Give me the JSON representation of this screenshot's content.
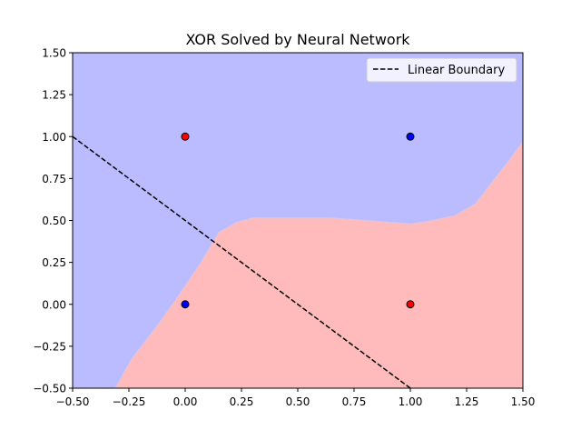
{
  "chart_data": {
    "type": "scatter",
    "title": "XOR Solved by Neural Network",
    "xlabel": "",
    "ylabel": "",
    "xlim": [
      -0.5,
      1.5
    ],
    "ylim": [
      -0.5,
      1.5
    ],
    "xticks": [
      "−0.50",
      "−0.25",
      "0.00",
      "0.25",
      "0.50",
      "0.75",
      "1.00",
      "1.25",
      "1.50"
    ],
    "xtick_values": [
      -0.5,
      -0.25,
      0.0,
      0.25,
      0.5,
      0.75,
      1.0,
      1.25,
      1.5
    ],
    "yticks": [
      "−0.50",
      "−0.25",
      "0.00",
      "0.25",
      "0.50",
      "0.75",
      "1.00",
      "1.25",
      "1.50"
    ],
    "ytick_values": [
      -0.5,
      -0.25,
      0.0,
      0.25,
      0.5,
      0.75,
      1.0,
      1.25,
      1.5
    ],
    "grid": false,
    "legend_position": "top-right",
    "points": [
      {
        "x": 0,
        "y": 0,
        "class": 0,
        "color": "#0000ff"
      },
      {
        "x": 0,
        "y": 1,
        "class": 1,
        "color": "#ff0000"
      },
      {
        "x": 1,
        "y": 0,
        "class": 1,
        "color": "#ff0000"
      },
      {
        "x": 1,
        "y": 1,
        "class": 0,
        "color": "#0000ff"
      }
    ],
    "linear_boundary": {
      "name": "Linear Boundary",
      "x": [
        -0.5,
        1.0
      ],
      "y": [
        1.0,
        -0.5
      ],
      "color": "#000000",
      "style": "dashed"
    },
    "decision_regions": {
      "class0_color": "#bbbbff",
      "class1_color": "#ffbbbb",
      "boundary": [
        {
          "x": -0.31,
          "y": -0.5
        },
        {
          "x": -0.24,
          "y": -0.33
        },
        {
          "x": -0.12,
          "y": -0.12
        },
        {
          "x": -0.03,
          "y": 0.05
        },
        {
          "x": 0.07,
          "y": 0.25
        },
        {
          "x": 0.15,
          "y": 0.43
        },
        {
          "x": 0.23,
          "y": 0.49
        },
        {
          "x": 0.3,
          "y": 0.515
        },
        {
          "x": 0.65,
          "y": 0.515
        },
        {
          "x": 0.85,
          "y": 0.495
        },
        {
          "x": 1.0,
          "y": 0.48
        },
        {
          "x": 1.08,
          "y": 0.495
        },
        {
          "x": 1.2,
          "y": 0.53
        },
        {
          "x": 1.29,
          "y": 0.6
        },
        {
          "x": 1.37,
          "y": 0.74
        },
        {
          "x": 1.44,
          "y": 0.86
        },
        {
          "x": 1.5,
          "y": 0.97
        }
      ]
    }
  }
}
